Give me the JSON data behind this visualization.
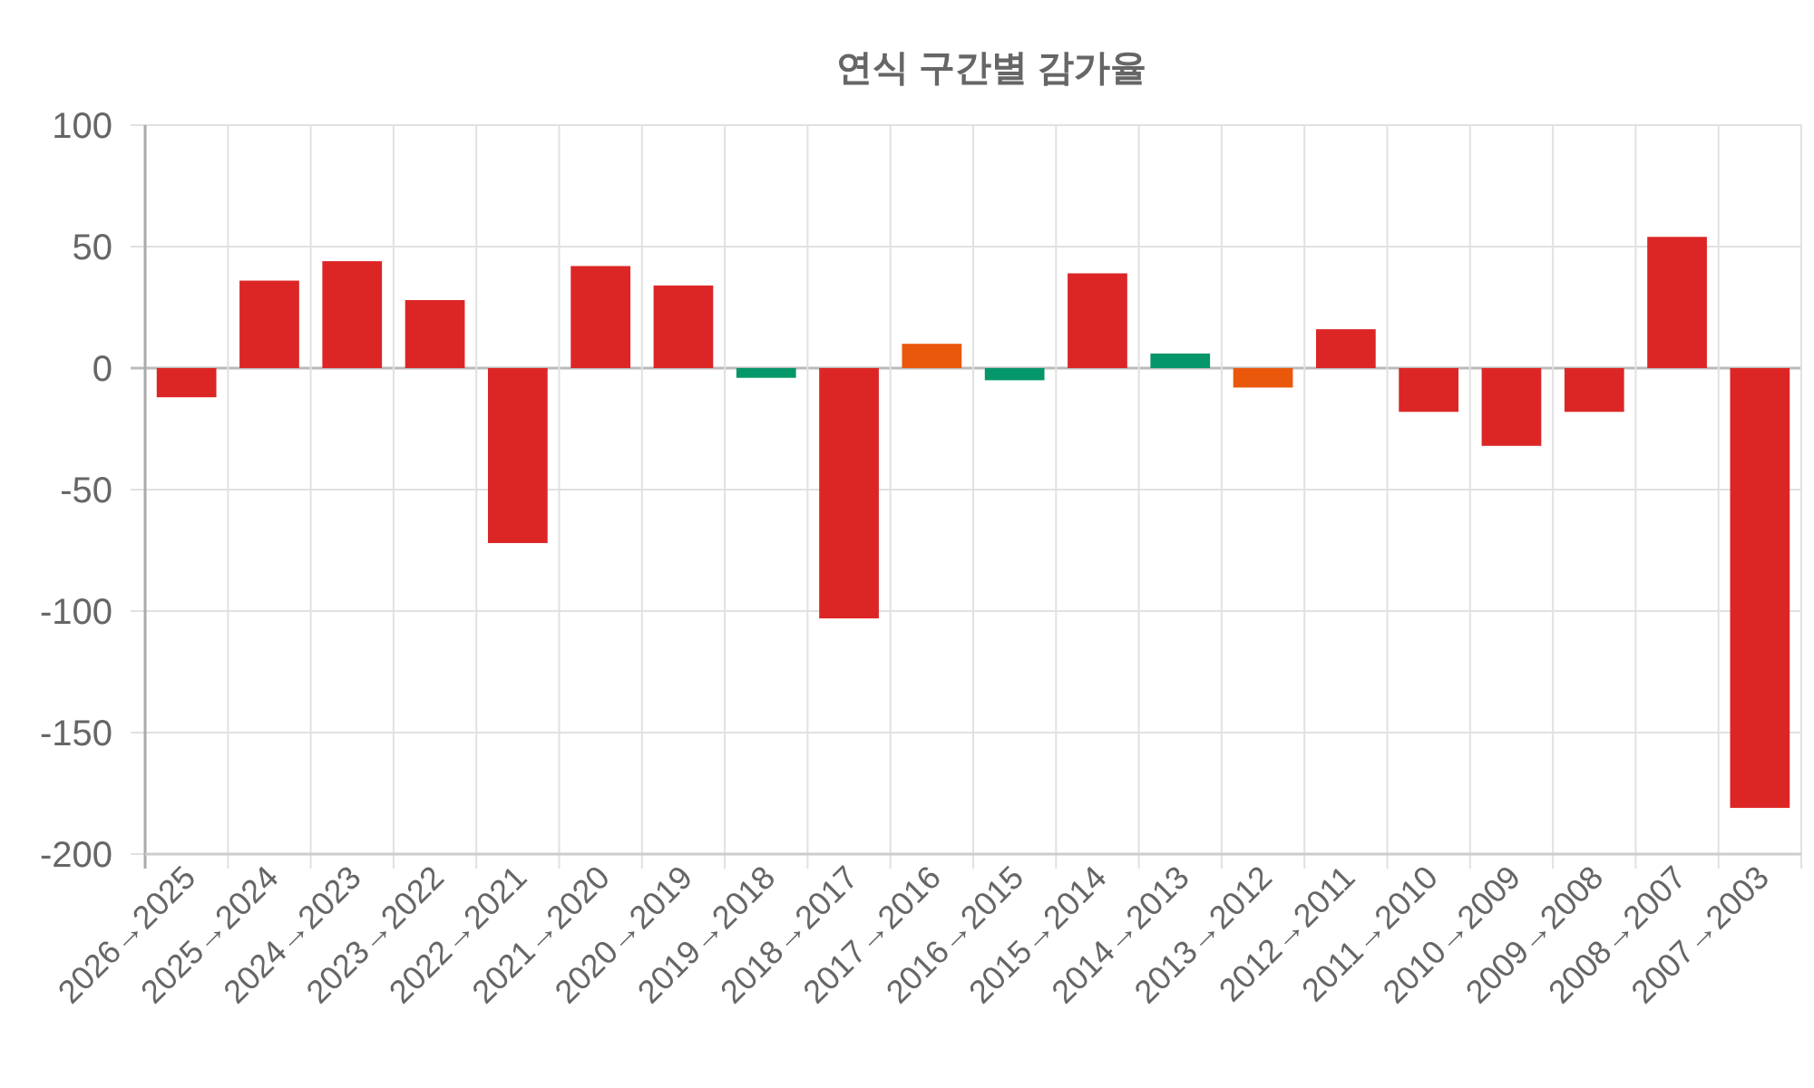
{
  "chart_data": {
    "type": "bar",
    "title": "연식 구간별 감가율",
    "categories": [
      "2026→2025",
      "2025→2024",
      "2024→2023",
      "2023→2022",
      "2022→2021",
      "2021→2020",
      "2020→2019",
      "2019→2018",
      "2018→2017",
      "2017→2016",
      "2016→2015",
      "2015→2014",
      "2014→2013",
      "2013→2012",
      "2012→2011",
      "2011→2010",
      "2010→2009",
      "2009→2008",
      "2008→2007",
      "2007→2003"
    ],
    "values": [
      -12,
      36,
      44,
      28,
      -72,
      42,
      34,
      -4,
      -103,
      10,
      -5,
      39,
      6,
      -8,
      16,
      -18,
      -32,
      -18,
      54,
      -181
    ],
    "colors": [
      "#dc2626",
      "#dc2626",
      "#dc2626",
      "#dc2626",
      "#dc2626",
      "#dc2626",
      "#dc2626",
      "#059669",
      "#dc2626",
      "#ea580c",
      "#059669",
      "#dc2626",
      "#059669",
      "#ea580c",
      "#dc2626",
      "#dc2626",
      "#dc2626",
      "#dc2626",
      "#dc2626",
      "#dc2626"
    ],
    "ylim": [
      -200,
      100
    ],
    "yticks": [
      -200,
      -150,
      -100,
      -50,
      0,
      50,
      100
    ],
    "grid": true
  }
}
